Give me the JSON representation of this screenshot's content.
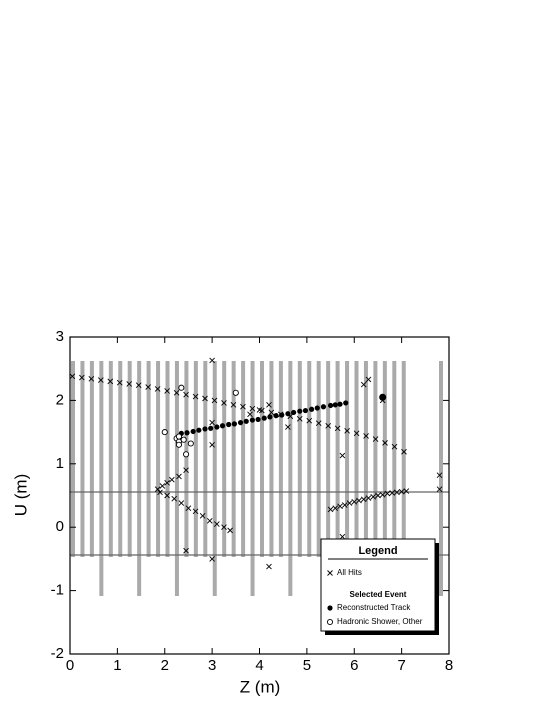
{
  "chart_data": {
    "type": "scatter",
    "x_label": "Z (m)",
    "y_label": "U (m)",
    "xlim": [
      0,
      8
    ],
    "ylim": [
      -2,
      3
    ],
    "xticks": [
      0,
      1,
      2,
      3,
      4,
      5,
      6,
      7,
      8
    ],
    "yticks": [
      -2,
      -1,
      0,
      1,
      2,
      3
    ],
    "legend_title": "Legend",
    "legend_subtitle": "Selected Event",
    "series": [
      {
        "name": "All Hits",
        "marker": "cross",
        "color": "#000000",
        "x": [
          0.05,
          0.25,
          0.45,
          0.65,
          0.85,
          1.05,
          1.25,
          1.45,
          1.65,
          1.85,
          2.05,
          2.25,
          2.45,
          2.65,
          2.85,
          3.05,
          3.25,
          3.45,
          3.65,
          3.85,
          4.05,
          4.25,
          4.45,
          4.65,
          4.85,
          5.05,
          5.25,
          5.45,
          5.65,
          5.85,
          6.05,
          6.25,
          6.45,
          6.65,
          6.85,
          7.05,
          1.85,
          1.95,
          2.05,
          2.15,
          2.3,
          2.45,
          1.9,
          2.05,
          2.2,
          2.35,
          2.5,
          2.65,
          2.8,
          2.95,
          3.1,
          3.25,
          3.38,
          5.5,
          5.6,
          5.7,
          5.8,
          5.9,
          6.0,
          6.1,
          6.2,
          6.3,
          6.4,
          6.5,
          6.6,
          6.7,
          6.8,
          6.9,
          7.0,
          7.1,
          3.0,
          3.0,
          3.0,
          2.45,
          3.0,
          4.2,
          5.75,
          5.75,
          6.2,
          6.3,
          6.6,
          7.8,
          7.8,
          4.6,
          4.2,
          3.8,
          4.0
        ],
        "values": [
          2.38,
          2.36,
          2.34,
          2.32,
          2.3,
          2.28,
          2.26,
          2.24,
          2.21,
          2.18,
          2.15,
          2.12,
          2.09,
          2.06,
          2.03,
          2.0,
          1.96,
          1.93,
          1.9,
          1.87,
          1.84,
          1.81,
          1.78,
          1.75,
          1.71,
          1.68,
          1.64,
          1.6,
          1.56,
          1.52,
          1.48,
          1.44,
          1.39,
          1.33,
          1.27,
          1.19,
          0.6,
          0.65,
          0.7,
          0.75,
          0.8,
          0.9,
          0.55,
          0.5,
          0.45,
          0.38,
          0.3,
          0.25,
          0.18,
          0.1,
          0.05,
          0.0,
          -0.05,
          0.28,
          0.3,
          0.33,
          0.35,
          0.38,
          0.4,
          0.42,
          0.44,
          0.46,
          0.48,
          0.5,
          0.51,
          0.53,
          0.54,
          0.55,
          0.56,
          0.57,
          2.63,
          1.3,
          1.65,
          -0.37,
          -0.5,
          -0.62,
          1.13,
          -0.15,
          2.25,
          2.33,
          2.0,
          0.82,
          0.6,
          1.58,
          1.93,
          1.78,
          1.85
        ]
      },
      {
        "name": "Reconstructed Track",
        "marker": "filled",
        "color": "#000000",
        "x": [
          2.35,
          2.47,
          2.6,
          2.72,
          2.85,
          2.97,
          3.1,
          3.22,
          3.35,
          3.47,
          3.6,
          3.72,
          3.85,
          3.97,
          4.1,
          4.22,
          4.35,
          4.47,
          4.6,
          4.72,
          4.85,
          4.97,
          5.1,
          5.22,
          5.35,
          5.5,
          5.6,
          5.7,
          5.82,
          6.6
        ],
        "values": [
          1.48,
          1.49,
          1.51,
          1.53,
          1.55,
          1.56,
          1.58,
          1.6,
          1.62,
          1.63,
          1.65,
          1.67,
          1.69,
          1.7,
          1.72,
          1.74,
          1.76,
          1.77,
          1.79,
          1.81,
          1.83,
          1.84,
          1.86,
          1.88,
          1.9,
          1.92,
          1.93,
          1.94,
          1.96,
          2.05
        ]
      },
      {
        "name": "Hadronic Shower, Other",
        "marker": "open",
        "color": "#000000",
        "x": [
          2.0,
          2.25,
          2.3,
          2.3,
          2.4,
          2.45,
          2.55,
          2.35,
          2.3,
          3.5
        ],
        "values": [
          1.5,
          1.4,
          1.35,
          1.3,
          1.38,
          1.15,
          1.32,
          2.2,
          1.43,
          2.12
        ]
      }
    ]
  }
}
